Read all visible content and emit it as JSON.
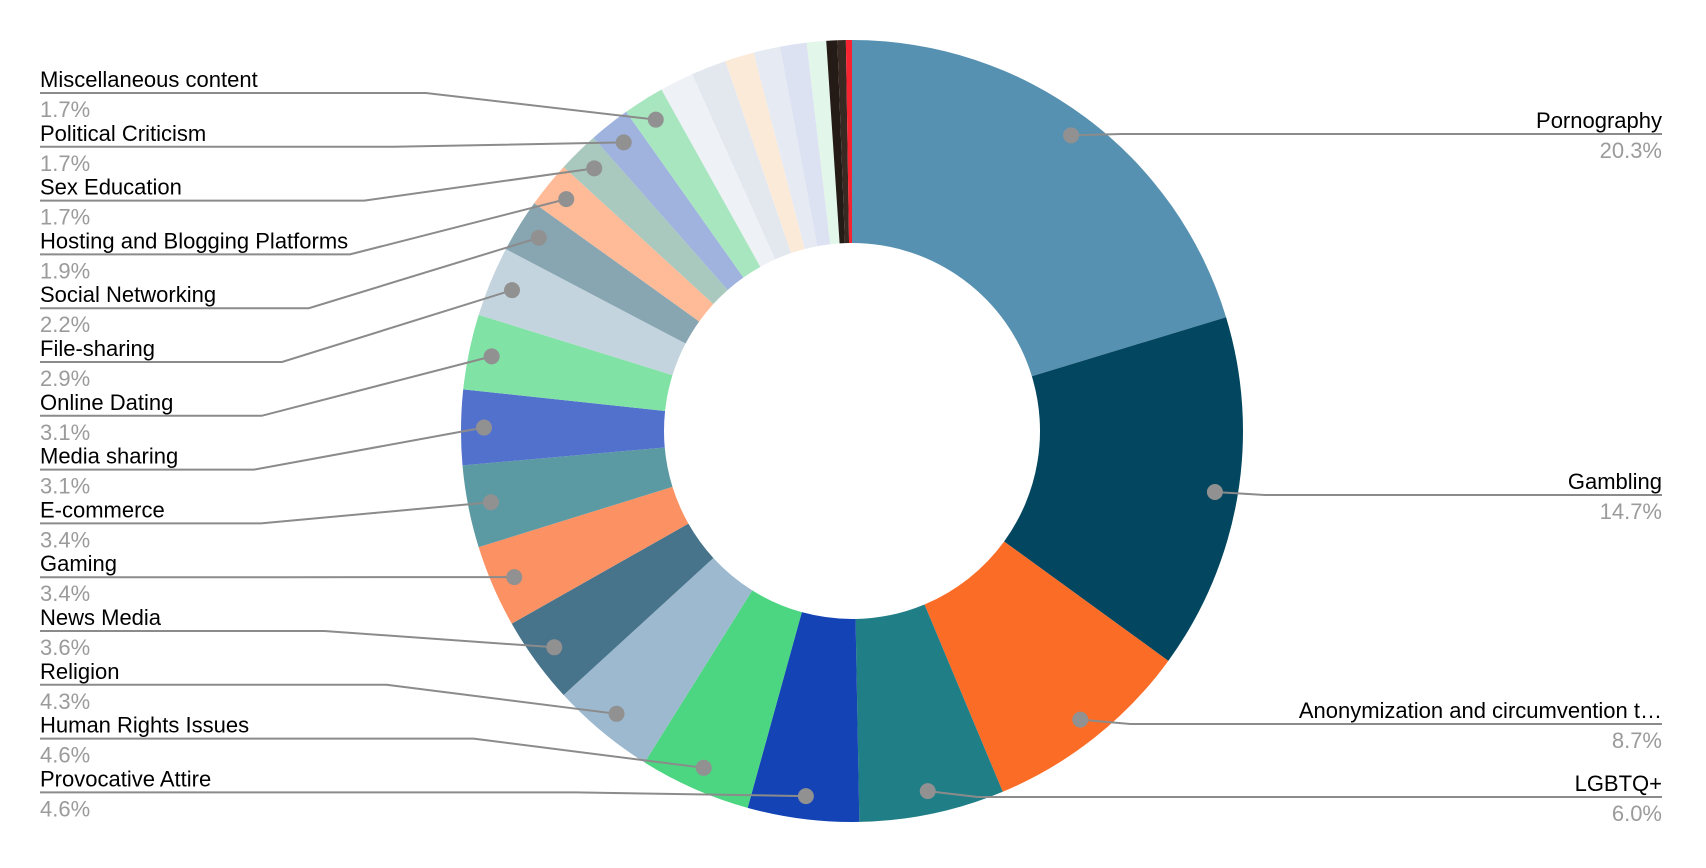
{
  "chart_data": {
    "type": "pie",
    "variant": "donut",
    "title": "",
    "unit": "%",
    "legend_position": "callout-labels-left-and-right",
    "grid": false,
    "total": 100.0,
    "series": [
      {
        "label": "Pornography",
        "value": 20.3,
        "color": "#5791b1",
        "side": "right"
      },
      {
        "label": "Gambling",
        "value": 14.7,
        "color": "#03465f",
        "side": "right"
      },
      {
        "label": "Anonymization and circumvention t…",
        "value": 8.7,
        "color": "#fb6d27",
        "side": "right"
      },
      {
        "label": "LGBTQ+",
        "value": 6.0,
        "color": "#1f7e86",
        "side": "right"
      },
      {
        "label": "Provocative Attire",
        "value": 4.6,
        "color": "#1343b4",
        "side": "left"
      },
      {
        "label": "Human Rights Issues",
        "value": 4.6,
        "color": "#4dd681",
        "side": "left"
      },
      {
        "label": "Religion",
        "value": 4.3,
        "color": "#9db9cf",
        "side": "left"
      },
      {
        "label": "News Media",
        "value": 3.6,
        "color": "#47738b",
        "side": "left"
      },
      {
        "label": "Gaming",
        "value": 3.4,
        "color": "#fc9263",
        "side": "left"
      },
      {
        "label": "E-commerce",
        "value": 3.4,
        "color": "#5b9aa3",
        "side": "left"
      },
      {
        "label": "Media sharing",
        "value": 3.1,
        "color": "#5271cc",
        "side": "left"
      },
      {
        "label": "Online Dating",
        "value": 3.1,
        "color": "#80e2a5",
        "side": "left"
      },
      {
        "label": "File-sharing",
        "value": 2.9,
        "color": "#c4d4de",
        "side": "left"
      },
      {
        "label": "Social Networking",
        "value": 2.2,
        "color": "#87a6b2",
        "side": "left"
      },
      {
        "label": "Hosting and Blogging Platforms",
        "value": 1.9,
        "color": "#ffbb98",
        "side": "left"
      },
      {
        "label": "Sex Education",
        "value": 1.7,
        "color": "#a9c8be",
        "side": "left"
      },
      {
        "label": "Political Criticism",
        "value": 1.7,
        "color": "#9fb3de",
        "side": "left"
      },
      {
        "label": "Miscellaneous content",
        "value": 1.7,
        "color": "#a8e6c0",
        "side": "left"
      },
      {
        "label": "",
        "value": 1.4,
        "color": "#eef1f5"
      },
      {
        "label": "",
        "value": 1.45,
        "color": "#e3e8ef"
      },
      {
        "label": "",
        "value": 1.2,
        "color": "#fcead9"
      },
      {
        "label": "",
        "value": 1.1,
        "color": "#e6eaf2"
      },
      {
        "label": "",
        "value": 1.1,
        "color": "#dde2f2"
      },
      {
        "label": "",
        "value": 0.8,
        "color": "#e2f6e9"
      },
      {
        "label": "",
        "value": 0.45,
        "color": "#241a16"
      },
      {
        "label": "",
        "value": 0.35,
        "color": "#382a22"
      },
      {
        "label": "",
        "value": 0.25,
        "color": "#f52430"
      }
    ],
    "style": {
      "background": "#ffffff",
      "label_color": "#000000",
      "percent_color": "#9b9b9b",
      "leader_line_color": "#8b8b8b",
      "leader_dot_color": "#919191"
    }
  }
}
